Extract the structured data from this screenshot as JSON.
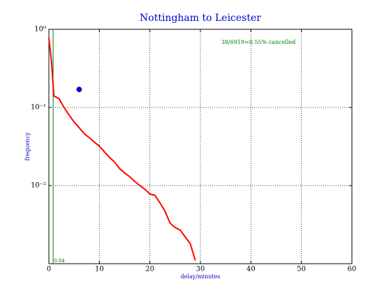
{
  "chart_data": {
    "type": "line",
    "title": "Nottingham to Leicester",
    "xlabel": "delay/minutes",
    "ylabel": "frequency",
    "annotation": "38/6919=0.55% cancelled",
    "x": [
      0,
      0.5,
      1,
      2,
      3,
      4,
      5,
      6,
      7,
      8,
      9,
      10,
      11,
      12,
      13,
      14,
      15,
      16,
      17,
      18,
      19,
      20,
      21,
      22,
      23,
      24,
      25,
      26,
      27,
      28,
      29
    ],
    "series": [
      {
        "color": "#ff0000",
        "values": [
          0.77,
          0.4,
          0.14,
          0.13,
          0.1,
          0.08,
          0.065,
          0.055,
          0.046,
          0.041,
          0.036,
          0.032,
          0.027,
          0.023,
          0.02,
          0.0165,
          0.0145,
          0.013,
          0.0113,
          0.01,
          0.009,
          0.0078,
          0.0075,
          0.006,
          0.0047,
          0.0033,
          0.0029,
          0.0027,
          0.0022,
          0.0018,
          0.0011
        ]
      }
    ],
    "points": [
      {
        "x": 6,
        "y": 0.17,
        "color": "#0000ff"
      }
    ],
    "vline": {
      "x": 0.84,
      "color": "#008000"
    },
    "xlim": [
      0,
      60
    ],
    "xticks": [
      0,
      10,
      20,
      30,
      40,
      50,
      60
    ],
    "ylim": [
      0.001,
      1
    ],
    "yscale": "log",
    "yticks": [
      {
        "value": 1,
        "label": "10⁰"
      },
      {
        "value": 0.1,
        "label": "10⁻¹"
      },
      {
        "value": 0.01,
        "label": "10⁻²"
      }
    ],
    "grid": true
  }
}
